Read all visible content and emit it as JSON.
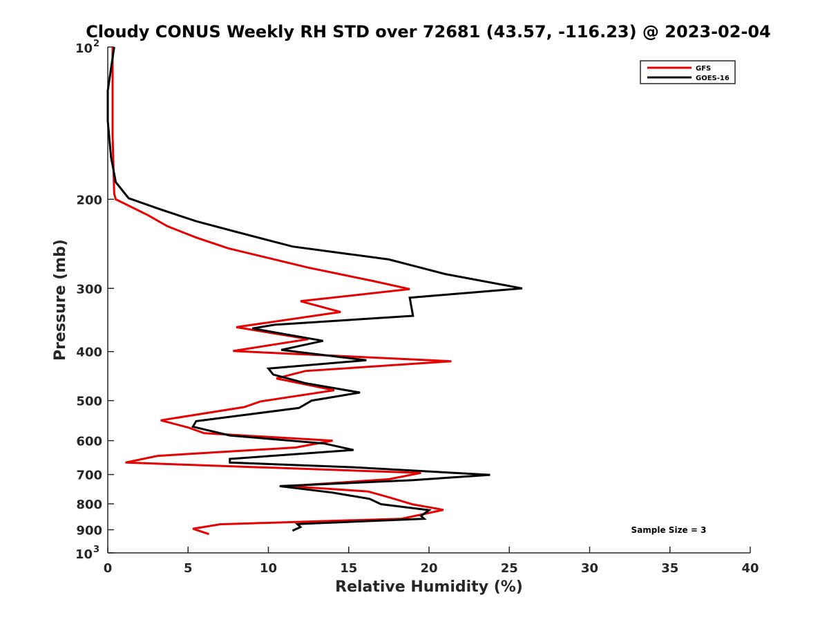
{
  "chart_data": {
    "type": "line",
    "title": "Cloudy CONUS Weekly RH STD over 72681 (43.57, -116.23) @ 2023-02-04",
    "xlabel": "Relative Humidity (%)",
    "ylabel": "Pressure (mb)",
    "xlim": [
      0,
      40
    ],
    "ylim": [
      100,
      1000
    ],
    "y_scale": "log",
    "y_reversed": true,
    "grid": false,
    "legend_position": "top-right",
    "x_ticks": [
      "0",
      "5",
      "10",
      "15",
      "20",
      "25",
      "30",
      "35",
      "40"
    ],
    "y_ticks": [
      {
        "value": 100,
        "base": "10",
        "exp": "2"
      },
      {
        "value": 200,
        "label": "200"
      },
      {
        "value": 300,
        "label": "300"
      },
      {
        "value": 400,
        "label": "400"
      },
      {
        "value": 500,
        "label": "500"
      },
      {
        "value": 600,
        "label": "600"
      },
      {
        "value": 700,
        "label": "700"
      },
      {
        "value": 800,
        "label": "800"
      },
      {
        "value": 900,
        "label": "900"
      },
      {
        "value": 1000,
        "base": "10",
        "exp": "3"
      }
    ],
    "annotation": "Sample Size = 3",
    "series": [
      {
        "name": "GFS",
        "color": "#e60000",
        "points": [
          [
            0.3,
            100
          ],
          [
            0.3,
            150
          ],
          [
            0.4,
            195
          ],
          [
            0.5,
            200
          ],
          [
            2.5,
            215
          ],
          [
            3.7,
            226
          ],
          [
            5.5,
            238
          ],
          [
            7.5,
            250
          ],
          [
            12.5,
            273
          ],
          [
            16.5,
            290
          ],
          [
            18.8,
            301
          ],
          [
            12.0,
            318
          ],
          [
            14.5,
            334
          ],
          [
            8.0,
            358
          ],
          [
            12.5,
            378
          ],
          [
            7.8,
            399
          ],
          [
            21.4,
            418
          ],
          [
            12.3,
            437
          ],
          [
            10.5,
            452
          ],
          [
            14.1,
            477
          ],
          [
            9.5,
            502
          ],
          [
            8.5,
            515
          ],
          [
            3.3,
            547
          ],
          [
            5.0,
            565
          ],
          [
            6.0,
            580
          ],
          [
            14.0,
            600
          ],
          [
            11.7,
            619
          ],
          [
            3.1,
            643
          ],
          [
            1.1,
            663
          ],
          [
            19.5,
            695
          ],
          [
            17.5,
            715
          ],
          [
            11.2,
            738
          ],
          [
            16.2,
            756
          ],
          [
            17.6,
            778
          ],
          [
            19.0,
            802
          ],
          [
            20.9,
            822
          ],
          [
            18.3,
            856
          ],
          [
            7.0,
            878
          ],
          [
            5.3,
            896
          ],
          [
            6.3,
            918
          ]
        ]
      },
      {
        "name": "GOES-16",
        "color": "#000000",
        "points": [
          [
            0.4,
            100
          ],
          [
            0,
            122
          ],
          [
            0,
            140
          ],
          [
            0.2,
            165
          ],
          [
            0.5,
            185
          ],
          [
            1.3,
            199
          ],
          [
            3.2,
            209
          ],
          [
            5.5,
            221
          ],
          [
            8.0,
            232
          ],
          [
            11.5,
            248
          ],
          [
            17.5,
            263
          ],
          [
            21.0,
            281
          ],
          [
            25.8,
            300
          ],
          [
            18.8,
            313
          ],
          [
            19.0,
            340
          ],
          [
            10.4,
            354
          ],
          [
            9.0,
            360
          ],
          [
            13.4,
            381
          ],
          [
            10.8,
            397
          ],
          [
            16.1,
            416
          ],
          [
            10.0,
            432
          ],
          [
            10.3,
            444
          ],
          [
            12.3,
            462
          ],
          [
            15.7,
            482
          ],
          [
            12.7,
            500
          ],
          [
            11.9,
            517
          ],
          [
            5.5,
            549
          ],
          [
            5.3,
            563
          ],
          [
            7.6,
            586
          ],
          [
            13.5,
            608
          ],
          [
            15.3,
            626
          ],
          [
            7.6,
            652
          ],
          [
            7.6,
            663
          ],
          [
            15.2,
            677
          ],
          [
            23.8,
            701
          ],
          [
            19.0,
            718
          ],
          [
            10.7,
            738
          ],
          [
            14.0,
            760
          ],
          [
            16.3,
            782
          ],
          [
            17.0,
            801
          ],
          [
            20.0,
            823
          ],
          [
            19.5,
            845
          ],
          [
            19.7,
            856
          ],
          [
            11.8,
            877
          ],
          [
            12.0,
            889
          ],
          [
            11.5,
            904
          ]
        ]
      }
    ]
  }
}
